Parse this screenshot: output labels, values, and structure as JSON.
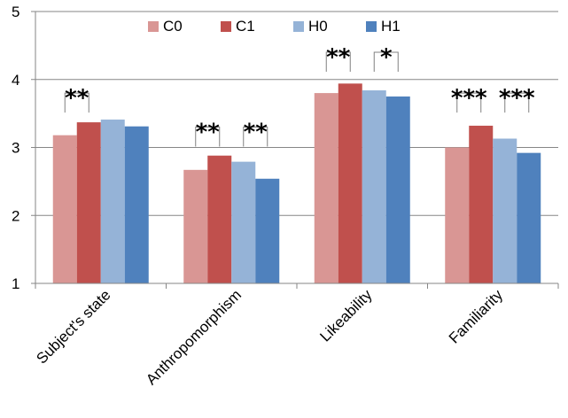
{
  "chart_data": {
    "type": "bar",
    "title": "",
    "xlabel": "",
    "ylabel": "",
    "ylim": [
      1,
      5
    ],
    "yticks": [
      1,
      2,
      3,
      4,
      5
    ],
    "grid": true,
    "legend_position": "top",
    "categories": [
      "Subject's state",
      "Anthropomorphism",
      "Likeability",
      "Familiarity"
    ],
    "series": [
      {
        "name": "C0",
        "color": "#d99694",
        "values": [
          3.18,
          2.67,
          3.8,
          3.0
        ]
      },
      {
        "name": "C1",
        "color": "#c0504d",
        "values": [
          3.37,
          2.88,
          3.94,
          3.32
        ]
      },
      {
        "name": "H0",
        "color": "#95b3d7",
        "values": [
          3.41,
          2.79,
          3.84,
          3.13
        ]
      },
      {
        "name": "H1",
        "color": "#4f81bd",
        "values": [
          3.31,
          2.54,
          3.75,
          2.92
        ]
      }
    ],
    "significance": [
      {
        "category": 0,
        "from_series": 0,
        "to_series": 1,
        "label": "**",
        "level": 3.8
      },
      {
        "category": 1,
        "from_series": 0,
        "to_series": 1,
        "label": "**",
        "level": 3.3
      },
      {
        "category": 1,
        "from_series": 2,
        "to_series": 3,
        "label": "**",
        "level": 3.3
      },
      {
        "category": 2,
        "from_series": 0,
        "to_series": 1,
        "label": "**",
        "level": 4.4
      },
      {
        "category": 2,
        "from_series": 2,
        "to_series": 3,
        "label": "*",
        "level": 4.4
      },
      {
        "category": 3,
        "from_series": 0,
        "to_series": 1,
        "label": "***",
        "level": 3.8
      },
      {
        "category": 3,
        "from_series": 2,
        "to_series": 3,
        "label": "***",
        "level": 3.8
      }
    ]
  }
}
